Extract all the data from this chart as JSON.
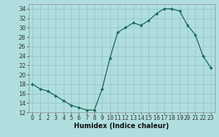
{
  "x": [
    0,
    1,
    2,
    3,
    4,
    5,
    6,
    7,
    8,
    9,
    10,
    11,
    12,
    13,
    14,
    15,
    16,
    17,
    18,
    19,
    20,
    21,
    22,
    23
  ],
  "y": [
    18,
    17,
    16.5,
    15.5,
    14.5,
    13.5,
    13,
    12.5,
    12.5,
    17,
    23.5,
    29,
    30,
    31,
    30.5,
    31.5,
    33,
    34,
    34,
    33.5,
    30.5,
    28.5,
    24,
    21.5
  ],
  "line_color": "#1a6b5a",
  "marker": "D",
  "marker_size": 2.0,
  "background_color": "#b0dede",
  "grid_color": "#90c0c0",
  "xlabel": "Humidex (Indice chaleur)",
  "ylim": [
    12,
    35
  ],
  "xlim": [
    -0.5,
    23.5
  ],
  "yticks": [
    12,
    14,
    16,
    18,
    20,
    22,
    24,
    26,
    28,
    30,
    32,
    34
  ],
  "xticks": [
    0,
    1,
    2,
    3,
    4,
    5,
    6,
    7,
    8,
    9,
    10,
    11,
    12,
    13,
    14,
    15,
    16,
    17,
    18,
    19,
    20,
    21,
    22,
    23
  ],
  "xlabel_fontsize": 7,
  "tick_fontsize": 6,
  "linewidth": 1.0
}
